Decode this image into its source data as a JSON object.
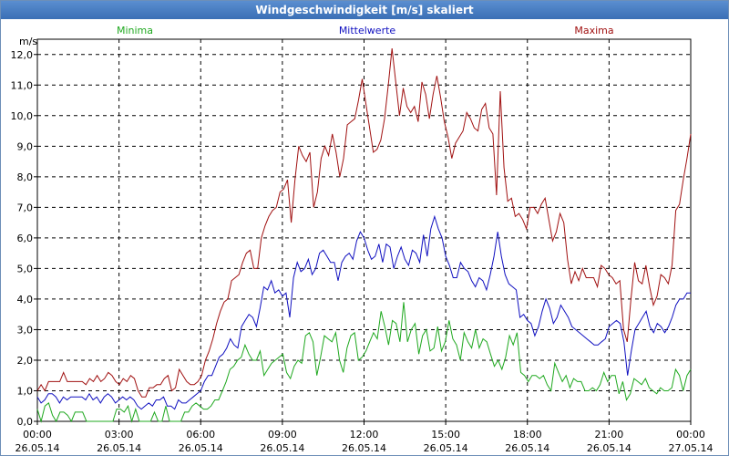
{
  "window": {
    "title": "Windgeschwindigkeit [m/s] skaliert"
  },
  "colors": {
    "minima": "#1fa81f",
    "mittelwerte": "#1010c0",
    "maxima": "#a01010"
  },
  "chart_data": {
    "type": "line",
    "title": "Windgeschwindigkeit [m/s] skaliert",
    "ylabel": "m/s",
    "xlabel": "",
    "ylim": [
      0,
      12.5
    ],
    "xlim_hours": [
      0,
      24
    ],
    "grid": true,
    "yticks": [
      "0,0",
      "1,0",
      "2,0",
      "3,0",
      "4,0",
      "5,0",
      "6,0",
      "7,0",
      "8,0",
      "9,0",
      "10,0",
      "11,0",
      "12,0"
    ],
    "xticks": [
      {
        "time": "00:00",
        "date": "26.05.14"
      },
      {
        "time": "03:00",
        "date": "26.05.14"
      },
      {
        "time": "06:00",
        "date": "26.05.14"
      },
      {
        "time": "09:00",
        "date": "26.05.14"
      },
      {
        "time": "12:00",
        "date": "26.05.14"
      },
      {
        "time": "15:00",
        "date": "26.05.14"
      },
      {
        "time": "18:00",
        "date": "26.05.14"
      },
      {
        "time": "21:00",
        "date": "26.05.14"
      },
      {
        "time": "00:00",
        "date": "27.05.14"
      }
    ],
    "legend": {
      "placement": "top",
      "labels": [
        "Minima",
        "Mittelwerte",
        "Maxima"
      ]
    },
    "series": [
      {
        "name": "Minima",
        "values": [
          0.4,
          0.0,
          0.5,
          0.6,
          0.2,
          0.0,
          0.3,
          0.3,
          0.2,
          0.0,
          0.3,
          0.3,
          0.3,
          0.0,
          0.0,
          0.0,
          0.0,
          0.0,
          0.0,
          0.0,
          0.0,
          0.4,
          0.4,
          0.3,
          0.5,
          0.0,
          0.4,
          0.0,
          0.0,
          0.0,
          0.0,
          0.3,
          0.0,
          0.0,
          0.5,
          0.0,
          0.0,
          0.0,
          0.0,
          0.3,
          0.3,
          0.5,
          0.6,
          0.5,
          0.4,
          0.4,
          0.5,
          0.7,
          0.7,
          1.0,
          1.3,
          1.7,
          1.8,
          2.0,
          2.1,
          2.5,
          2.2,
          2.0,
          2.0,
          2.3,
          1.5,
          1.7,
          1.9,
          2.0,
          2.1,
          2.2,
          1.6,
          1.4,
          1.8,
          2.0,
          1.9,
          2.8,
          2.9,
          2.6,
          1.5,
          2.1,
          2.8,
          2.7,
          2.6,
          2.9,
          2.0,
          1.6,
          2.4,
          2.8,
          2.9,
          2.0,
          2.1,
          2.3,
          2.6,
          2.9,
          2.7,
          3.6,
          3.1,
          2.5,
          3.3,
          3.2,
          2.6,
          3.9,
          2.6,
          3.0,
          3.2,
          2.2,
          2.8,
          3.0,
          2.3,
          2.4,
          3.1,
          2.3,
          2.6,
          3.3,
          2.7,
          2.5,
          2.0,
          2.9,
          2.6,
          2.4,
          3.0,
          2.4,
          2.7,
          2.6,
          2.2,
          1.8,
          2.0,
          1.7,
          2.1,
          2.8,
          2.5,
          2.9,
          1.6,
          1.5,
          1.3,
          1.5,
          1.5,
          1.4,
          1.5,
          1.2,
          1.0,
          1.9,
          1.6,
          1.3,
          1.5,
          1.1,
          1.4,
          1.3,
          1.3,
          1.0,
          1.0,
          1.1,
          1.0,
          1.2,
          1.6,
          1.3,
          1.5,
          1.5,
          0.9,
          1.3,
          0.7,
          0.9,
          1.4,
          1.3,
          1.2,
          1.4,
          1.1,
          1.0,
          0.9,
          1.1,
          1.0,
          1.0,
          1.1,
          1.7,
          1.5,
          1.0,
          1.5,
          1.7
        ]
      },
      {
        "name": "Mittelwerte",
        "values": [
          0.8,
          0.6,
          0.7,
          0.9,
          0.9,
          0.8,
          0.6,
          0.8,
          0.7,
          0.8,
          0.8,
          0.8,
          0.8,
          0.7,
          0.9,
          0.7,
          0.8,
          0.6,
          0.8,
          0.9,
          0.8,
          0.6,
          0.7,
          0.8,
          0.7,
          0.8,
          0.7,
          0.5,
          0.4,
          0.5,
          0.6,
          0.5,
          0.7,
          0.7,
          0.8,
          0.5,
          0.5,
          0.4,
          0.7,
          0.6,
          0.6,
          0.7,
          0.8,
          0.9,
          1.0,
          1.3,
          1.5,
          1.5,
          1.8,
          2.1,
          2.2,
          2.4,
          2.7,
          2.5,
          2.4,
          3.1,
          3.3,
          3.5,
          3.4,
          3.1,
          3.7,
          4.4,
          4.3,
          4.6,
          4.2,
          4.3,
          4.1,
          4.2,
          3.4,
          4.7,
          5.2,
          4.9,
          5.0,
          5.3,
          4.8,
          5.0,
          5.5,
          5.6,
          5.4,
          5.2,
          5.2,
          4.6,
          5.2,
          5.4,
          5.5,
          5.3,
          5.9,
          6.2,
          6.0,
          5.6,
          5.3,
          5.4,
          5.8,
          5.2,
          5.8,
          5.7,
          5.0,
          5.4,
          5.7,
          5.3,
          5.1,
          5.6,
          5.5,
          5.2,
          6.1,
          5.4,
          6.3,
          6.7,
          6.3,
          6.0,
          5.4,
          5.1,
          4.7,
          4.7,
          5.2,
          5.0,
          4.9,
          4.6,
          4.4,
          4.7,
          4.6,
          4.3,
          4.8,
          5.4,
          6.2,
          5.4,
          4.8,
          4.5,
          4.4,
          4.3,
          3.4,
          3.5,
          3.3,
          3.2,
          2.8,
          3.1,
          3.6,
          4.0,
          3.7,
          3.2,
          3.4,
          3.8,
          3.6,
          3.4,
          3.1,
          3.0,
          2.9,
          2.8,
          2.7,
          2.6,
          2.5,
          2.5,
          2.6,
          2.7,
          3.1,
          3.2,
          3.3,
          3.2,
          2.6,
          1.5,
          2.3,
          3.0,
          3.2,
          3.4,
          3.6,
          3.1,
          2.9,
          3.2,
          3.1,
          2.9,
          3.1,
          3.4,
          3.8,
          4.0,
          4.0,
          4.2,
          4.2
        ]
      },
      {
        "name": "Maxima",
        "values": [
          1.0,
          1.2,
          1.0,
          1.3,
          1.3,
          1.3,
          1.3,
          1.6,
          1.3,
          1.3,
          1.3,
          1.3,
          1.3,
          1.2,
          1.4,
          1.3,
          1.5,
          1.3,
          1.4,
          1.6,
          1.5,
          1.3,
          1.2,
          1.4,
          1.3,
          1.5,
          1.4,
          1.0,
          0.8,
          0.8,
          1.1,
          1.1,
          1.2,
          1.2,
          1.4,
          1.5,
          1.0,
          1.1,
          1.7,
          1.5,
          1.3,
          1.2,
          1.2,
          1.3,
          1.5,
          2.0,
          2.3,
          2.7,
          3.2,
          3.6,
          3.9,
          4.0,
          4.6,
          4.7,
          4.8,
          5.2,
          5.5,
          5.6,
          5.0,
          5.0,
          6.0,
          6.4,
          6.7,
          6.9,
          7.0,
          7.5,
          7.6,
          7.9,
          6.5,
          7.9,
          9.0,
          8.7,
          8.5,
          8.8,
          7.0,
          7.5,
          8.6,
          9.0,
          8.7,
          9.4,
          8.8,
          8.0,
          8.6,
          9.7,
          9.8,
          9.9,
          10.5,
          11.2,
          10.4,
          9.6,
          8.8,
          8.9,
          9.2,
          9.9,
          11.0,
          12.2,
          11.1,
          10.0,
          10.9,
          10.3,
          10.1,
          10.3,
          9.8,
          11.1,
          10.7,
          9.9,
          10.7,
          11.3,
          10.6,
          9.8,
          9.3,
          8.6,
          9.1,
          9.3,
          9.5,
          10.1,
          9.9,
          9.6,
          9.5,
          10.2,
          10.4,
          9.6,
          9.4,
          7.4,
          10.8,
          8.3,
          7.2,
          7.3,
          6.7,
          6.8,
          6.6,
          6.3,
          7.0,
          7.0,
          6.8,
          7.1,
          7.3,
          6.6,
          5.9,
          6.2,
          6.8,
          6.5,
          5.3,
          4.5,
          4.9,
          4.6,
          5.0,
          4.7,
          4.7,
          4.7,
          4.4,
          5.1,
          5.0,
          4.8,
          4.7,
          4.5,
          4.6,
          3.0,
          2.6,
          4.0,
          5.2,
          4.6,
          4.5,
          5.1,
          4.4,
          3.8,
          4.1,
          4.8,
          4.7,
          4.5,
          5.1,
          6.9,
          7.1,
          7.9,
          8.6,
          9.4
        ]
      }
    ]
  }
}
